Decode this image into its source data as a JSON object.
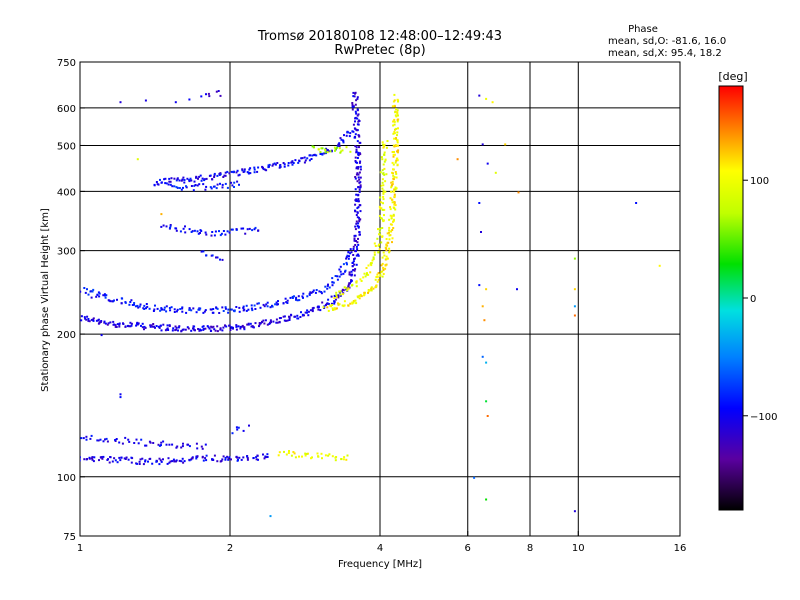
{
  "header": {
    "title": "Tromsø 20180108 12:48:00–12:49:43",
    "subtitle": "RwPretec (8p)",
    "phase_title": "Phase",
    "phase_o": "mean, sd,O: -81.6, 16.0",
    "phase_x": "mean, sd,X:  95.4, 18.2"
  },
  "colorbar": {
    "label": "[deg]",
    "ticks": [
      {
        "value": 100,
        "label": "100"
      },
      {
        "value": 0,
        "label": "0"
      },
      {
        "value": -100,
        "label": "−100"
      }
    ],
    "range": [
      -180,
      180
    ]
  },
  "chart_data": {
    "type": "scatter",
    "title": "Tromsø 20180108 12:48:00–12:49:43",
    "subtitle": "RwPretec (8p)",
    "xlabel": "Frequency [MHz]",
    "ylabel": "Stationary phase Virtual Height [km]",
    "x_scale": "log",
    "y_scale": "log",
    "xlim": [
      1,
      16
    ],
    "ylim": [
      75,
      750
    ],
    "x_ticks": [
      {
        "value": 1,
        "label": "1"
      },
      {
        "value": 2,
        "label": "2"
      },
      {
        "value": 4,
        "label": "4"
      },
      {
        "value": 6,
        "label": "6"
      },
      {
        "value": 8,
        "label": "8"
      },
      {
        "value": 10,
        "label": "10"
      },
      {
        "value": 16,
        "label": "16"
      }
    ],
    "y_ticks": [
      {
        "value": 75,
        "label": "75"
      },
      {
        "value": 100,
        "label": "100"
      },
      {
        "value": 200,
        "label": "200"
      },
      {
        "value": 300,
        "label": "300"
      },
      {
        "value": 400,
        "label": "400"
      },
      {
        "value": 500,
        "label": "500"
      },
      {
        "value": 600,
        "label": "600"
      },
      {
        "value": 750,
        "label": "750"
      }
    ],
    "x_gridlines": [
      2,
      4,
      6,
      8,
      10
    ],
    "y_gridlines": [
      100,
      200,
      300,
      400,
      500,
      600
    ],
    "grid": true,
    "color_by": "phase (deg)",
    "color_range": [
      -180,
      180
    ],
    "traces": [
      {
        "pts": [
          [
            1.0,
            218
          ],
          [
            1.1,
            212
          ],
          [
            1.25,
            210
          ],
          [
            1.4,
            208
          ],
          [
            1.6,
            206
          ],
          [
            1.8,
            206
          ],
          [
            2.0,
            207
          ],
          [
            2.2,
            210
          ],
          [
            2.4,
            213
          ],
          [
            2.6,
            217
          ],
          [
            2.8,
            222
          ],
          [
            3.0,
            228
          ],
          [
            3.2,
            236
          ],
          [
            3.35,
            245
          ],
          [
            3.45,
            256
          ],
          [
            3.52,
            270
          ],
          [
            3.56,
            290
          ],
          [
            3.58,
            320
          ],
          [
            3.59,
            360
          ],
          [
            3.6,
            420
          ],
          [
            3.6,
            480
          ],
          [
            3.58,
            550
          ],
          [
            3.55,
            620
          ],
          [
            3.55,
            650
          ]
        ],
        "phase": -108,
        "density": 9,
        "spread": 0.02
      },
      {
        "pts": [
          [
            1.0,
            250
          ],
          [
            1.2,
            236
          ],
          [
            1.4,
            228
          ],
          [
            1.7,
            225
          ],
          [
            2.0,
            226
          ],
          [
            2.3,
            230
          ],
          [
            2.6,
            236
          ],
          [
            2.9,
            244
          ],
          [
            3.1,
            252
          ],
          [
            3.25,
            262
          ],
          [
            3.35,
            275
          ],
          [
            3.42,
            290
          ],
          [
            3.47,
            305
          ]
        ],
        "phase": -90,
        "density": 7,
        "spread": 0.03
      },
      {
        "pts": [
          [
            3.1,
            228
          ],
          [
            3.3,
            230
          ],
          [
            3.5,
            235
          ],
          [
            3.7,
            242
          ],
          [
            3.85,
            252
          ],
          [
            3.95,
            262
          ],
          [
            4.05,
            278
          ],
          [
            4.12,
            300
          ],
          [
            4.18,
            330
          ],
          [
            4.22,
            370
          ],
          [
            4.25,
            420
          ],
          [
            4.27,
            480
          ],
          [
            4.28,
            550
          ],
          [
            4.27,
            640
          ]
        ],
        "phase": 108,
        "density": 9,
        "spread": 0.02
      },
      {
        "pts": [
          [
            3.2,
            242
          ],
          [
            3.4,
            250
          ],
          [
            3.6,
            260
          ],
          [
            3.75,
            270
          ],
          [
            3.85,
            285
          ],
          [
            3.92,
            300
          ],
          [
            3.98,
            330
          ],
          [
            4.02,
            380
          ],
          [
            4.05,
            440
          ],
          [
            4.07,
            490
          ],
          [
            4.08,
            520
          ]
        ],
        "phase": 95,
        "density": 6,
        "spread": 0.02
      },
      {
        "pts": [
          [
            1.4,
            420
          ],
          [
            1.6,
            425
          ],
          [
            1.8,
            430
          ],
          [
            2.0,
            438
          ],
          [
            2.2,
            445
          ],
          [
            2.4,
            452
          ],
          [
            2.6,
            460
          ],
          [
            2.8,
            470
          ],
          [
            3.0,
            480
          ],
          [
            3.15,
            490
          ],
          [
            3.3,
            505
          ],
          [
            3.42,
            525
          ],
          [
            3.5,
            545
          ]
        ],
        "phase": -100,
        "density": 8,
        "spread": 0.02
      },
      {
        "pts": [
          [
            1.5,
            412
          ],
          [
            1.7,
            410
          ],
          [
            1.9,
            413
          ],
          [
            2.1,
            418
          ]
        ],
        "phase": -90,
        "density": 5,
        "spread": 0.02
      },
      {
        "pts": [
          [
            2.9,
            495
          ],
          [
            3.1,
            492
          ],
          [
            3.3,
            490
          ],
          [
            3.45,
            492
          ]
        ],
        "phase": 70,
        "density": 6,
        "spread": 0.02
      },
      {
        "pts": [
          [
            1.45,
            340
          ],
          [
            1.6,
            335
          ],
          [
            1.75,
            330
          ],
          [
            1.9,
            328
          ],
          [
            2.0,
            330
          ],
          [
            2.2,
            332
          ],
          [
            2.3,
            335
          ]
        ],
        "phase": -95,
        "density": 5,
        "spread": 0.02
      },
      {
        "pts": [
          [
            1.75,
            300
          ],
          [
            1.85,
            290
          ],
          [
            1.95,
            286
          ]
        ],
        "phase": -100,
        "density": 4,
        "spread": 0.02
      },
      {
        "pts": [
          [
            1.75,
            640
          ],
          [
            1.85,
            650
          ],
          [
            1.95,
            645
          ]
        ],
        "phase": -110,
        "density": 3,
        "spread": 0.02
      },
      {
        "pts": [
          [
            1.0,
            110
          ],
          [
            1.2,
            109
          ],
          [
            1.4,
            108
          ],
          [
            1.6,
            109
          ],
          [
            1.8,
            110
          ],
          [
            2.0,
            109
          ],
          [
            2.2,
            110
          ],
          [
            2.4,
            111
          ]
        ],
        "phase": -105,
        "density": 7,
        "spread": 0.02
      },
      {
        "pts": [
          [
            1.0,
            122
          ],
          [
            1.2,
            120
          ],
          [
            1.4,
            118
          ],
          [
            1.6,
            117
          ],
          [
            1.8,
            116
          ]
        ],
        "phase": -100,
        "density": 4,
        "spread": 0.03
      },
      {
        "pts": [
          [
            2.5,
            113
          ],
          [
            2.7,
            112
          ],
          [
            2.9,
            111
          ],
          [
            3.1,
            111
          ],
          [
            3.3,
            110
          ],
          [
            3.5,
            111
          ]
        ],
        "phase": 100,
        "density": 5,
        "spread": 0.02
      },
      {
        "pts": [
          [
            2.0,
            125
          ],
          [
            2.1,
            127
          ],
          [
            2.2,
            128
          ]
        ],
        "phase": -98,
        "density": 3,
        "spread": 0.02
      }
    ],
    "scatter_points": [
      [
        1.2,
        620,
        -110
      ],
      [
        1.35,
        625,
        -105
      ],
      [
        1.55,
        620,
        -100
      ],
      [
        1.65,
        628,
        -95
      ],
      [
        6.3,
        640,
        -110
      ],
      [
        6.5,
        630,
        100
      ],
      [
        6.7,
        620,
        110
      ],
      [
        6.4,
        505,
        -110
      ],
      [
        6.55,
        460,
        -100
      ],
      [
        7.1,
        505,
        120
      ],
      [
        6.3,
        380,
        -90
      ],
      [
        6.35,
        330,
        -110
      ],
      [
        6.3,
        255,
        -90
      ],
      [
        6.5,
        250,
        120
      ],
      [
        6.4,
        230,
        130
      ],
      [
        6.45,
        215,
        140
      ],
      [
        6.4,
        180,
        -60
      ],
      [
        6.5,
        175,
        -30
      ],
      [
        6.5,
        145,
        20
      ],
      [
        6.55,
        135,
        150
      ],
      [
        6.5,
        90,
        30
      ],
      [
        7.5,
        250,
        -100
      ],
      [
        7.55,
        400,
        140
      ],
      [
        6.8,
        440,
        90
      ],
      [
        9.8,
        290,
        60
      ],
      [
        9.8,
        250,
        120
      ],
      [
        9.8,
        230,
        -40
      ],
      [
        9.8,
        220,
        150
      ],
      [
        9.8,
        85,
        -110
      ],
      [
        13.0,
        380,
        -90
      ],
      [
        14.5,
        280,
        110
      ],
      [
        5.7,
        470,
        140
      ],
      [
        2.4,
        83,
        -40
      ],
      [
        1.05,
        240,
        -110
      ],
      [
        1.1,
        200,
        -100
      ],
      [
        1.2,
        150,
        -100
      ],
      [
        1.2,
        148,
        -90
      ],
      [
        1.3,
        470,
        90
      ],
      [
        1.45,
        360,
        130
      ],
      [
        6.15,
        100,
        -60
      ]
    ]
  }
}
